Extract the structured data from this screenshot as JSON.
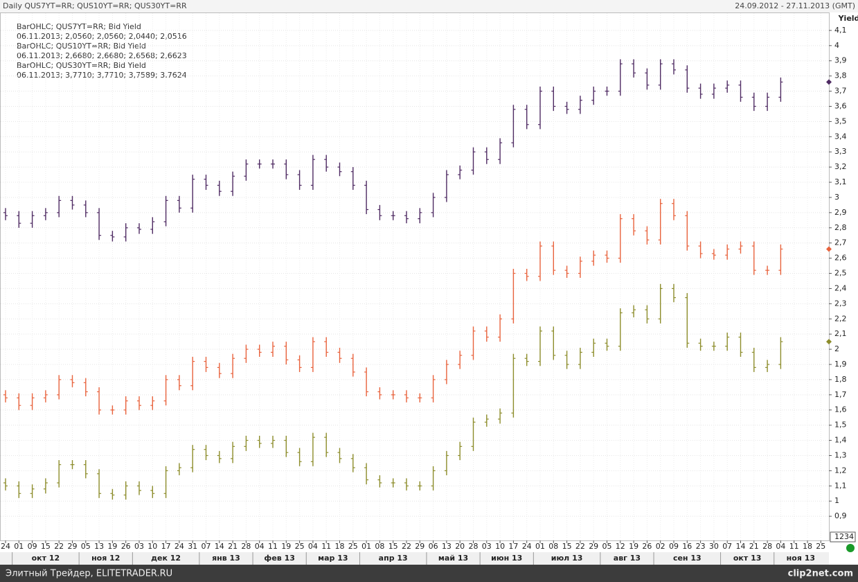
{
  "chart_data": {
    "type": "ohlc",
    "title": "Daily QUS7YT=RR; QUS10YT=RR; QUS30YT=RR",
    "date_range": "24.09.2012 - 27.11.2013 (GMT)",
    "y_label": "Yield",
    "axis_box": "1234",
    "footer": "Элитный Трейдер, ELITETRADER.RU",
    "watermark": "clip2net.com",
    "grid": true,
    "ylim": [
      0.75,
      4.2
    ],
    "yticks": [
      {
        "value": 0.9,
        "label": "0,9"
      },
      1,
      {
        "value": 1.1,
        "label": "1,1"
      },
      {
        "value": 1.2,
        "label": "1,2"
      },
      {
        "value": 1.3,
        "label": "1,3"
      },
      {
        "value": 1.4,
        "label": "1,4"
      },
      {
        "value": 1.5,
        "label": "1,5"
      },
      {
        "value": 1.6,
        "label": "1,6"
      },
      {
        "value": 1.7,
        "label": "1,7"
      },
      {
        "value": 1.8,
        "label": "1,8"
      },
      {
        "value": 1.9,
        "label": "1,9"
      },
      2,
      {
        "value": 2.1,
        "label": "2,1"
      },
      {
        "value": 2.2,
        "label": "2,2"
      },
      {
        "value": 2.3,
        "label": "2,3"
      },
      {
        "value": 2.4,
        "label": "2,4"
      },
      {
        "value": 2.5,
        "label": "2,5"
      },
      {
        "value": 2.6,
        "label": "2,6"
      },
      {
        "value": 2.7,
        "label": "2,7"
      },
      {
        "value": 2.8,
        "label": "2,8"
      },
      {
        "value": 2.9,
        "label": "2,9"
      },
      3,
      {
        "value": 3.1,
        "label": "3,1"
      },
      {
        "value": 3.2,
        "label": "3,2"
      },
      {
        "value": 3.3,
        "label": "3,3"
      },
      {
        "value": 3.4,
        "label": "3,4"
      },
      {
        "value": 3.5,
        "label": "3,5"
      },
      {
        "value": 3.6,
        "label": "3,6"
      },
      {
        "value": 3.7,
        "label": "3,7"
      },
      {
        "value": 3.8,
        "label": "3,8"
      },
      {
        "value": 3.9,
        "label": "3,9"
      },
      4,
      {
        "value": 4.1,
        "label": "4,1"
      }
    ],
    "categories": [
      "24",
      "01",
      "09",
      "15",
      "22",
      "29",
      "05",
      "13",
      "19",
      "26",
      "03",
      "10",
      "17",
      "24",
      "31",
      "07",
      "14",
      "21",
      "28",
      "04",
      "11",
      "19",
      "25",
      "04",
      "11",
      "18",
      "25",
      "01",
      "08",
      "15",
      "22",
      "29",
      "06",
      "13",
      "20",
      "28",
      "03",
      "10",
      "17",
      "24",
      "01",
      "08",
      "15",
      "22",
      "29",
      "05",
      "12",
      "19",
      "26",
      "02",
      "09",
      "16",
      "23",
      "30",
      "07",
      "14",
      "21",
      "28",
      "04",
      "11",
      "18",
      "25"
    ],
    "months": [
      "окт 12",
      "ноя 12",
      "дек 12",
      "янв 13",
      "фев 13",
      "мар 13",
      "апр 13",
      "май 13",
      "июн 13",
      "июл 13",
      "авг 13",
      "сен 13",
      "окт 13",
      "ноя 13"
    ],
    "series": [
      {
        "name": "BarOHLC; QUS7YT=RR; Bid Yield",
        "last": "06.11.2013; 2,0560; 2,0560; 2,0440; 2,0516",
        "color": "#8c8c2a",
        "open": [
          1.12,
          1.1,
          1.05,
          1.08,
          1.12,
          1.24,
          1.24,
          1.18,
          1.05,
          1.04,
          1.1,
          1.07,
          1.05,
          1.2,
          1.22,
          1.34,
          1.3,
          1.28,
          1.36,
          1.4,
          1.38,
          1.4,
          1.32,
          1.26,
          1.42,
          1.32,
          1.28,
          1.22,
          1.14,
          1.12,
          1.12,
          1.1,
          1.1,
          1.2,
          1.3,
          1.36,
          1.52,
          1.54,
          1.58,
          1.94,
          1.92,
          2.12,
          1.96,
          1.9,
          1.98,
          2.04,
          2.02,
          2.24,
          2.26,
          2.2,
          2.4,
          2.34,
          2.04,
          2.02,
          2.02,
          2.08,
          1.98,
          1.88,
          1.9,
          null,
          null,
          null
        ],
        "high": [
          1.15,
          1.13,
          1.11,
          1.15,
          1.27,
          1.27,
          1.27,
          1.21,
          1.08,
          1.13,
          1.13,
          1.1,
          1.23,
          1.25,
          1.37,
          1.37,
          1.33,
          1.39,
          1.43,
          1.43,
          1.43,
          1.43,
          1.35,
          1.45,
          1.45,
          1.35,
          1.31,
          1.25,
          1.17,
          1.15,
          1.15,
          1.13,
          1.23,
          1.33,
          1.39,
          1.55,
          1.57,
          1.61,
          1.97,
          1.97,
          2.15,
          2.15,
          1.99,
          2.01,
          2.07,
          2.07,
          2.27,
          2.29,
          2.29,
          2.43,
          2.43,
          2.37,
          2.07,
          2.05,
          2.11,
          2.11,
          2.01,
          1.93,
          2.08,
          null,
          null,
          null
        ],
        "low": [
          1.07,
          1.02,
          1.02,
          1.05,
          1.09,
          1.21,
          1.15,
          1.02,
          1.01,
          1.01,
          1.04,
          1.02,
          1.02,
          1.17,
          1.19,
          1.27,
          1.25,
          1.25,
          1.33,
          1.35,
          1.35,
          1.29,
          1.23,
          1.23,
          1.29,
          1.25,
          1.19,
          1.11,
          1.09,
          1.09,
          1.07,
          1.07,
          1.07,
          1.17,
          1.27,
          1.33,
          1.49,
          1.51,
          1.55,
          1.89,
          1.89,
          1.93,
          1.87,
          1.87,
          1.95,
          1.99,
          1.99,
          2.21,
          2.17,
          2.17,
          2.31,
          2.01,
          1.99,
          1.99,
          1.99,
          1.95,
          1.85,
          1.85,
          1.87,
          null,
          null,
          null
        ],
        "close": [
          1.1,
          1.05,
          1.08,
          1.12,
          1.24,
          1.24,
          1.18,
          1.05,
          1.04,
          1.1,
          1.07,
          1.05,
          1.2,
          1.22,
          1.34,
          1.3,
          1.28,
          1.36,
          1.4,
          1.38,
          1.4,
          1.32,
          1.26,
          1.42,
          1.32,
          1.28,
          1.22,
          1.14,
          1.12,
          1.12,
          1.1,
          1.1,
          1.2,
          1.3,
          1.36,
          1.52,
          1.54,
          1.58,
          1.94,
          1.92,
          2.12,
          1.96,
          1.9,
          1.98,
          2.04,
          2.02,
          2.24,
          2.26,
          2.2,
          2.4,
          2.34,
          2.04,
          2.02,
          2.02,
          2.08,
          1.98,
          1.88,
          1.9,
          2.05,
          null,
          null,
          null
        ]
      },
      {
        "name": "BarOHLC; QUS10YT=RR; Bid Yield",
        "last": "06.11.2013; 2,6680; 2,6680; 2,6568; 2,6623",
        "color": "#e8623c",
        "open": [
          1.7,
          1.68,
          1.63,
          1.68,
          1.7,
          1.8,
          1.78,
          1.72,
          1.6,
          1.6,
          1.66,
          1.63,
          1.66,
          1.8,
          1.76,
          1.92,
          1.88,
          1.84,
          1.94,
          2.0,
          1.98,
          2.02,
          1.93,
          1.88,
          2.05,
          1.98,
          1.94,
          1.85,
          1.72,
          1.7,
          1.7,
          1.68,
          1.68,
          1.8,
          1.9,
          1.96,
          2.12,
          2.08,
          2.2,
          2.5,
          2.48,
          2.68,
          2.52,
          2.5,
          2.58,
          2.62,
          2.6,
          2.86,
          2.78,
          2.72,
          2.96,
          2.88,
          2.68,
          2.63,
          2.62,
          2.66,
          2.68,
          2.52,
          2.52,
          null,
          null,
          null
        ],
        "high": [
          1.73,
          1.71,
          1.71,
          1.73,
          1.83,
          1.83,
          1.81,
          1.75,
          1.63,
          1.69,
          1.69,
          1.69,
          1.83,
          1.83,
          1.95,
          1.95,
          1.91,
          1.97,
          2.03,
          2.03,
          2.05,
          2.05,
          1.96,
          2.08,
          2.08,
          2.01,
          1.97,
          1.88,
          1.75,
          1.73,
          1.73,
          1.71,
          1.83,
          1.93,
          1.99,
          2.15,
          2.15,
          2.23,
          2.53,
          2.53,
          2.71,
          2.71,
          2.55,
          2.61,
          2.65,
          2.65,
          2.89,
          2.89,
          2.81,
          2.99,
          2.99,
          2.91,
          2.71,
          2.66,
          2.69,
          2.71,
          2.71,
          2.55,
          2.69,
          null,
          null,
          null
        ],
        "low": [
          1.65,
          1.6,
          1.6,
          1.65,
          1.67,
          1.75,
          1.69,
          1.57,
          1.57,
          1.57,
          1.6,
          1.6,
          1.63,
          1.73,
          1.73,
          1.85,
          1.81,
          1.81,
          1.91,
          1.95,
          1.95,
          1.9,
          1.85,
          1.85,
          1.95,
          1.91,
          1.82,
          1.69,
          1.67,
          1.67,
          1.65,
          1.65,
          1.65,
          1.77,
          1.87,
          1.93,
          2.05,
          2.05,
          2.17,
          2.45,
          2.45,
          2.49,
          2.47,
          2.47,
          2.55,
          2.57,
          2.57,
          2.75,
          2.69,
          2.69,
          2.85,
          2.65,
          2.6,
          2.59,
          2.59,
          2.63,
          2.49,
          2.49,
          2.49,
          null,
          null,
          null
        ],
        "close": [
          1.68,
          1.63,
          1.68,
          1.7,
          1.8,
          1.78,
          1.72,
          1.6,
          1.6,
          1.66,
          1.63,
          1.66,
          1.8,
          1.76,
          1.92,
          1.88,
          1.84,
          1.94,
          2.0,
          1.98,
          2.02,
          1.93,
          1.88,
          2.05,
          1.98,
          1.94,
          1.85,
          1.72,
          1.7,
          1.7,
          1.68,
          1.68,
          1.8,
          1.9,
          1.96,
          2.12,
          2.08,
          2.2,
          2.5,
          2.48,
          2.68,
          2.52,
          2.5,
          2.58,
          2.62,
          2.6,
          2.86,
          2.78,
          2.72,
          2.96,
          2.88,
          2.68,
          2.63,
          2.62,
          2.66,
          2.68,
          2.52,
          2.52,
          2.66,
          null,
          null,
          null
        ]
      },
      {
        "name": "BarOHLC; QUS30YT=RR; Bid Yield",
        "last": "06.11.2013; 3,7710; 3,7710; 3,7589; 3,7624",
        "color": "#4e2a62",
        "open": [
          2.9,
          2.88,
          2.83,
          2.88,
          2.9,
          2.98,
          2.95,
          2.9,
          2.75,
          2.74,
          2.8,
          2.79,
          2.84,
          2.98,
          2.93,
          3.12,
          3.08,
          3.04,
          3.14,
          3.22,
          3.22,
          3.22,
          3.15,
          3.08,
          3.25,
          3.2,
          3.17,
          3.08,
          2.92,
          2.88,
          2.88,
          2.86,
          2.9,
          3.0,
          3.15,
          3.18,
          3.3,
          3.25,
          3.36,
          3.58,
          3.48,
          3.7,
          3.6,
          3.58,
          3.64,
          3.7,
          3.7,
          3.88,
          3.82,
          3.74,
          3.88,
          3.84,
          3.72,
          3.68,
          3.72,
          3.74,
          3.66,
          3.6,
          3.66,
          null,
          null,
          null
        ],
        "high": [
          2.93,
          2.91,
          2.91,
          2.93,
          3.01,
          3.01,
          2.98,
          2.93,
          2.78,
          2.83,
          2.83,
          2.87,
          3.01,
          3.01,
          3.15,
          3.15,
          3.11,
          3.17,
          3.25,
          3.25,
          3.25,
          3.25,
          3.18,
          3.28,
          3.28,
          3.23,
          3.2,
          3.11,
          2.95,
          2.91,
          2.91,
          2.93,
          3.03,
          3.18,
          3.21,
          3.33,
          3.33,
          3.39,
          3.61,
          3.61,
          3.73,
          3.73,
          3.63,
          3.67,
          3.73,
          3.73,
          3.91,
          3.91,
          3.85,
          3.91,
          3.91,
          3.87,
          3.75,
          3.75,
          3.77,
          3.77,
          3.69,
          3.69,
          3.79,
          null,
          null,
          null
        ],
        "low": [
          2.85,
          2.8,
          2.8,
          2.85,
          2.87,
          2.92,
          2.87,
          2.72,
          2.71,
          2.71,
          2.76,
          2.76,
          2.81,
          2.9,
          2.9,
          3.05,
          3.01,
          3.01,
          3.11,
          3.19,
          3.19,
          3.12,
          3.05,
          3.05,
          3.17,
          3.14,
          3.05,
          2.89,
          2.85,
          2.85,
          2.83,
          2.83,
          2.87,
          2.97,
          3.12,
          3.15,
          3.22,
          3.22,
          3.33,
          3.45,
          3.45,
          3.57,
          3.55,
          3.55,
          3.61,
          3.67,
          3.67,
          3.79,
          3.71,
          3.71,
          3.81,
          3.69,
          3.65,
          3.65,
          3.69,
          3.63,
          3.57,
          3.57,
          3.63,
          null,
          null,
          null
        ],
        "close": [
          2.88,
          2.83,
          2.88,
          2.9,
          2.98,
          2.95,
          2.9,
          2.75,
          2.74,
          2.8,
          2.79,
          2.84,
          2.98,
          2.93,
          3.12,
          3.08,
          3.04,
          3.14,
          3.22,
          3.22,
          3.22,
          3.15,
          3.08,
          3.25,
          3.2,
          3.17,
          3.08,
          2.92,
          2.88,
          2.88,
          2.86,
          2.9,
          3.0,
          3.15,
          3.18,
          3.3,
          3.25,
          3.36,
          3.58,
          3.48,
          3.7,
          3.6,
          3.58,
          3.64,
          3.7,
          3.7,
          3.88,
          3.82,
          3.74,
          3.88,
          3.84,
          3.72,
          3.68,
          3.72,
          3.74,
          3.66,
          3.6,
          3.66,
          3.76,
          null,
          null,
          null
        ]
      }
    ]
  }
}
